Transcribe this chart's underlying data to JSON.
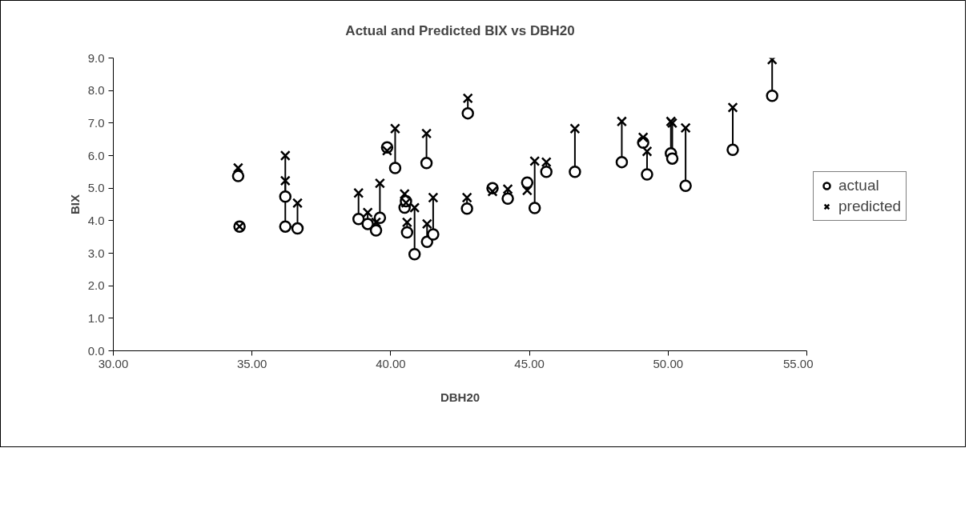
{
  "chart_data": {
    "type": "scatter",
    "title": "Actual and Predicted BIX vs DBH20",
    "xlabel": "DBH20",
    "ylabel": "BIX",
    "x": [
      34.5,
      34.55,
      36.2,
      36.2,
      36.64,
      38.84,
      39.17,
      39.47,
      39.61,
      39.87,
      40.16,
      40.5,
      40.55,
      40.59,
      40.86,
      41.29,
      41.31,
      41.53,
      42.75,
      42.78,
      43.67,
      44.22,
      44.92,
      45.19,
      45.61,
      46.64,
      48.33,
      49.1,
      49.24,
      50.1,
      50.15,
      50.63,
      52.33,
      53.75
    ],
    "series": [
      {
        "name": "actual",
        "color": "#000000",
        "marker": "circle",
        "values": [
          5.37,
          3.82,
          4.74,
          3.82,
          3.76,
          4.05,
          3.9,
          3.7,
          4.09,
          6.25,
          5.62,
          4.4,
          4.6,
          3.64,
          2.97,
          5.77,
          3.35,
          3.58,
          4.37,
          7.3,
          5.0,
          4.68,
          5.17,
          4.39,
          5.5,
          5.5,
          5.8,
          6.4,
          5.42,
          6.07,
          5.91,
          5.07,
          6.18,
          7.84
        ],
        "errors": [
          [
            5.37,
            5.62
          ],
          null,
          [
            4.74,
            5.23
          ],
          [
            3.82,
            6.0
          ],
          [
            3.76,
            4.54
          ],
          [
            4.05,
            4.85
          ],
          [
            3.9,
            4.25
          ],
          [
            3.7,
            3.95
          ],
          [
            4.09,
            5.15
          ],
          [
            6.15,
            6.25
          ],
          [
            5.62,
            6.83
          ],
          [
            4.4,
            4.82
          ],
          [
            4.55,
            4.6
          ],
          [
            3.64,
            3.95
          ],
          [
            2.97,
            4.4
          ],
          [
            5.77,
            6.68
          ],
          [
            3.35,
            3.9
          ],
          [
            3.58,
            4.71
          ],
          [
            4.37,
            4.71
          ],
          [
            7.3,
            7.76
          ],
          [
            4.9,
            5.0
          ],
          [
            4.68,
            4.97
          ],
          [
            4.93,
            5.17
          ],
          [
            4.39,
            5.83
          ],
          [
            5.5,
            5.8
          ],
          [
            5.5,
            6.83
          ],
          [
            5.8,
            7.05
          ],
          [
            6.4,
            6.56
          ],
          [
            5.42,
            6.13
          ],
          [
            6.07,
            7.05
          ],
          [
            5.91,
            7.0
          ],
          [
            5.07,
            6.85
          ],
          [
            6.18,
            7.48
          ],
          [
            7.84,
            8.95
          ]
        ]
      },
      {
        "name": "predicted",
        "color": "#000000",
        "marker": "x",
        "values": [
          5.62,
          3.82,
          5.23,
          6.0,
          4.54,
          4.85,
          4.25,
          3.95,
          5.15,
          6.15,
          6.83,
          4.82,
          4.55,
          3.95,
          4.4,
          6.68,
          3.9,
          4.71,
          4.71,
          7.76,
          4.9,
          4.97,
          4.93,
          5.83,
          5.8,
          6.83,
          7.05,
          6.56,
          6.13,
          7.05,
          7.0,
          6.85,
          7.48,
          8.95
        ]
      }
    ],
    "xlim": [
      30,
      55
    ],
    "ylim": [
      0,
      9
    ],
    "xticks": [
      {
        "value": 30,
        "label": "30.00"
      },
      {
        "value": 35,
        "label": "35.00"
      },
      {
        "value": 40,
        "label": "40.00"
      },
      {
        "value": 45,
        "label": "45.00"
      },
      {
        "value": 50,
        "label": "50.00"
      },
      {
        "value": 55,
        "label": "55.00"
      }
    ],
    "yticks": [
      {
        "value": 0,
        "label": "0.0"
      },
      {
        "value": 1,
        "label": "1.0"
      },
      {
        "value": 2,
        "label": "2.0"
      },
      {
        "value": 3,
        "label": "3.0"
      },
      {
        "value": 4,
        "label": "4.0"
      },
      {
        "value": 5,
        "label": "5.0"
      },
      {
        "value": 6,
        "label": "6.0"
      },
      {
        "value": 7,
        "label": "7.0"
      },
      {
        "value": 8,
        "label": "8.0"
      },
      {
        "value": 9,
        "label": "9.0"
      }
    ],
    "grid": false,
    "legend": "right"
  }
}
